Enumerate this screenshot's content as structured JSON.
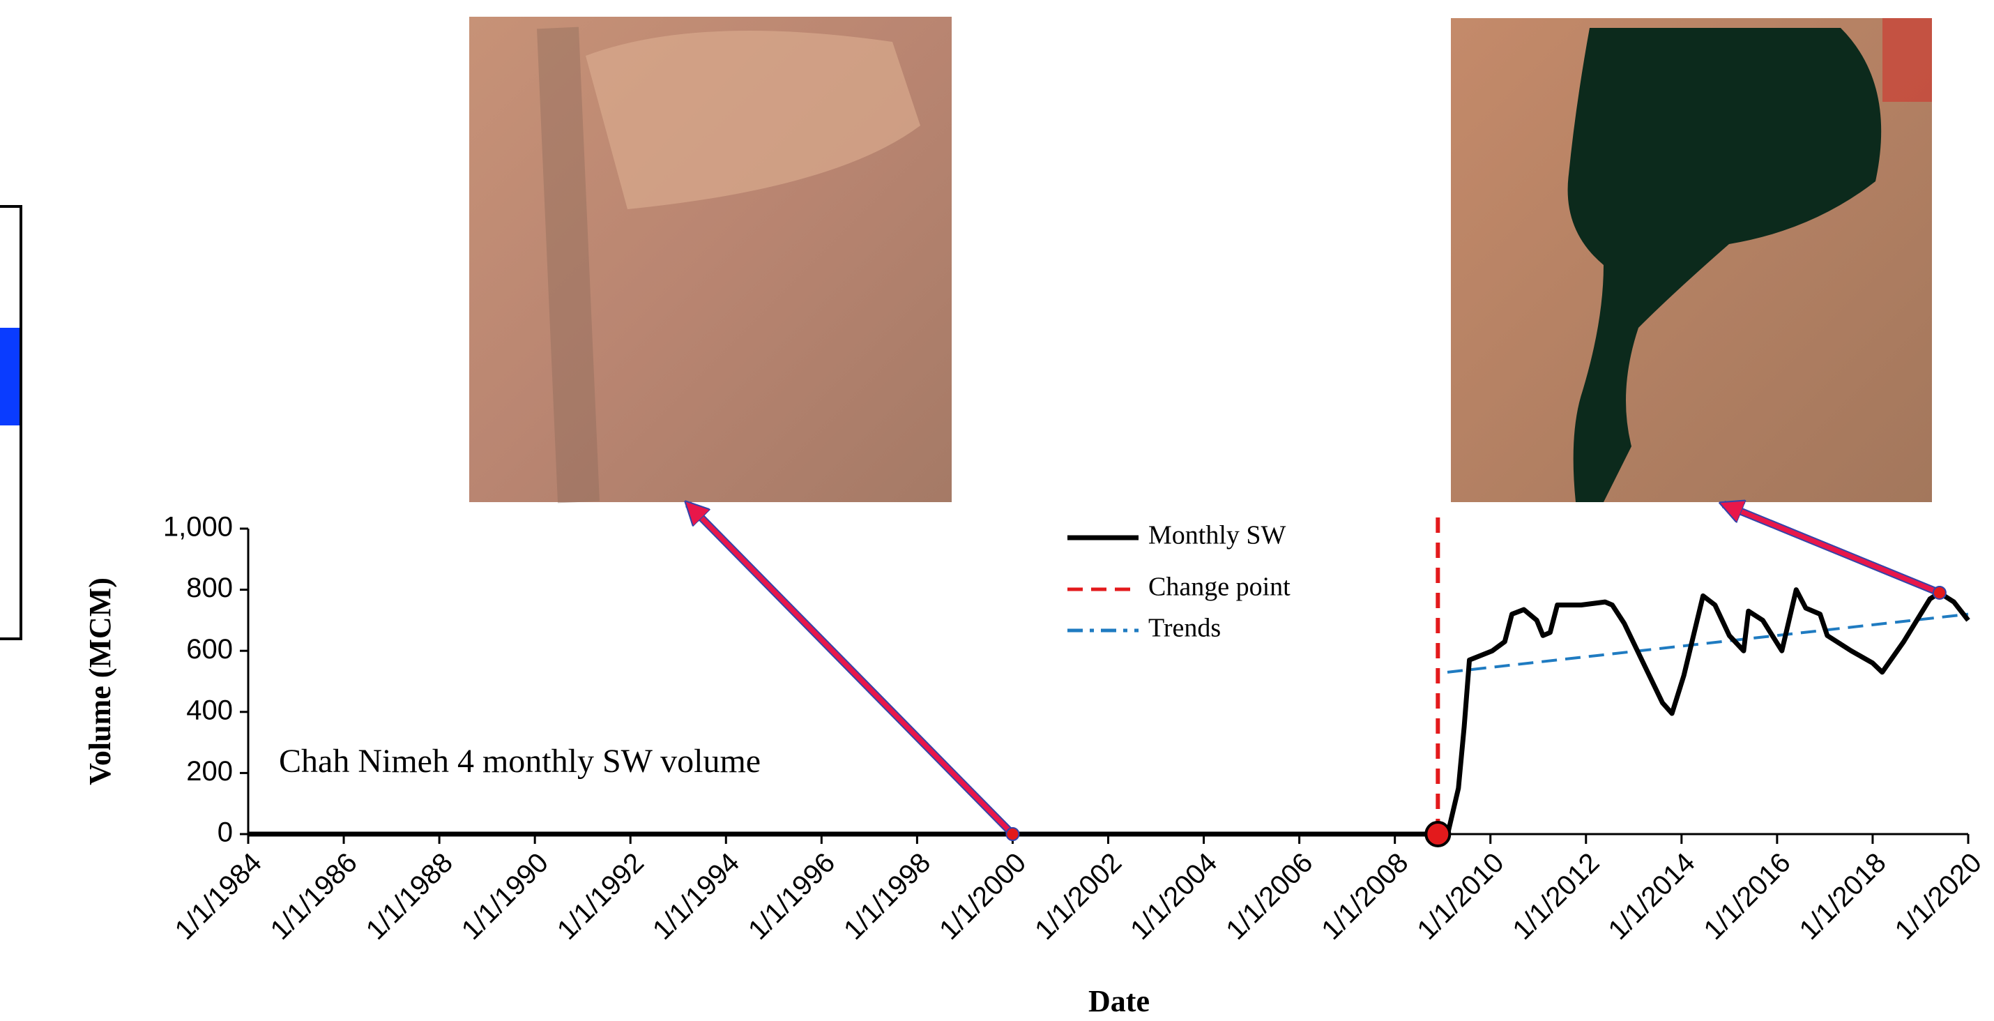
{
  "chart_data": {
    "type": "line",
    "title": "Chah Nimeh 4 monthly SW volume",
    "x_label": "Date",
    "y_label": "Volume (MCM)",
    "xlim": [
      1984,
      2020
    ],
    "ylim": [
      0,
      1000
    ],
    "xticks": [
      {
        "value": 1984,
        "label": "1/1/1984"
      },
      {
        "value": 1986,
        "label": "1/1/1986"
      },
      {
        "value": 1988,
        "label": "1/1/1988"
      },
      {
        "value": 1990,
        "label": "1/1/1990"
      },
      {
        "value": 1992,
        "label": "1/1/1992"
      },
      {
        "value": 1994,
        "label": "1/1/1994"
      },
      {
        "value": 1996,
        "label": "1/1/1996"
      },
      {
        "value": 1998,
        "label": "1/1/1998"
      },
      {
        "value": 2000,
        "label": "1/1/2000"
      },
      {
        "value": 2002,
        "label": "1/1/2002"
      },
      {
        "value": 2004,
        "label": "1/1/2004"
      },
      {
        "value": 2006,
        "label": "1/1/2006"
      },
      {
        "value": 2008,
        "label": "1/1/2008"
      },
      {
        "value": 2010,
        "label": "1/1/2010"
      },
      {
        "value": 2012,
        "label": "1/1/2012"
      },
      {
        "value": 2014,
        "label": "1/1/2014"
      },
      {
        "value": 2016,
        "label": "1/1/2016"
      },
      {
        "value": 2018,
        "label": "1/1/2018"
      },
      {
        "value": 2020,
        "label": "1/1/2020"
      }
    ],
    "yticks": [
      0,
      200,
      400,
      600,
      800,
      {
        "value": 1000,
        "label": "1,000"
      }
    ],
    "series": [
      {
        "name": "Monthly SW",
        "color": "#000000",
        "dash": "solid",
        "x": [
          1984,
          2008.9,
          2009.12,
          2009.33,
          2009.45,
          2009.56,
          2010.04,
          2010.3,
          2010.45,
          2010.7,
          2010.97,
          2011.1,
          2011.25,
          2011.4,
          2011.9,
          2012.4,
          2012.55,
          2012.8,
          2013.2,
          2013.6,
          2013.8,
          2014.05,
          2014.45,
          2014.7,
          2015,
          2015.3,
          2015.4,
          2015.7,
          2016.1,
          2016.4,
          2016.6,
          2016.9,
          2017.05,
          2017.55,
          2018,
          2018.2,
          2018.65,
          2019.2,
          2019.4,
          2019.7,
          2020
        ],
        "values": [
          0,
          0,
          10,
          150,
          350,
          570,
          600,
          630,
          720,
          735,
          700,
          650,
          660,
          750,
          750,
          760,
          750,
          690,
          560,
          430,
          395,
          520,
          780,
          750,
          650,
          600,
          730,
          700,
          600,
          800,
          740,
          720,
          650,
          600,
          560,
          530,
          630,
          770,
          790,
          760,
          700
        ]
      },
      {
        "name": "Trends",
        "color": "#1f7bc1",
        "dash": "dashed",
        "x": [
          1984,
          2008.9,
          null,
          2009.1,
          2020
        ],
        "values": [
          0,
          0,
          null,
          530,
          720
        ]
      }
    ],
    "change_point": {
      "name": "Change point",
      "color": "#e31a1c",
      "x": 2008.9
    },
    "highlights": {
      "color": "#e31a1c",
      "x": [
        2000,
        2008.9,
        2019.4
      ],
      "values": [
        0,
        0,
        790
      ]
    }
  }
}
